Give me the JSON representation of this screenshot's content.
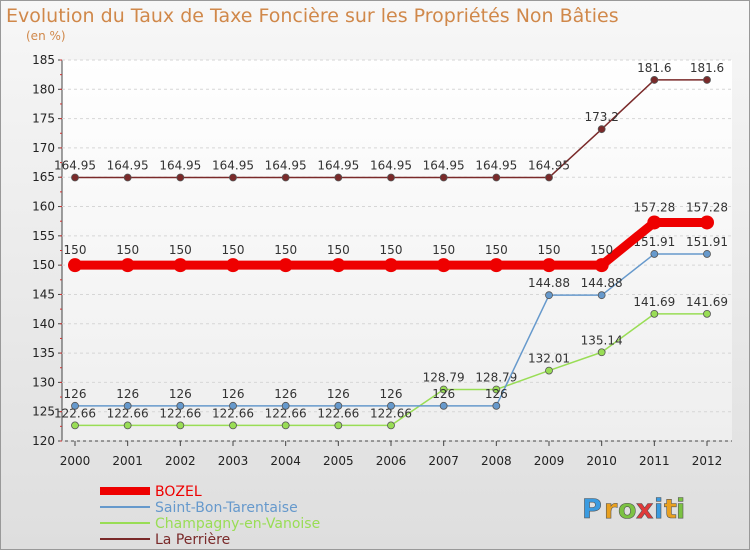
{
  "chart_data": {
    "type": "line",
    "title": "Evolution du Taux de Taxe Foncière sur les Propriétés Non Bâties",
    "ylabel": "(en %)",
    "xlabel": "",
    "ylim": [
      120,
      185
    ],
    "yticks": [
      120,
      125,
      130,
      135,
      140,
      145,
      150,
      155,
      160,
      165,
      170,
      175,
      180,
      185
    ],
    "categories": [
      "2000",
      "2001",
      "2002",
      "2003",
      "2004",
      "2005",
      "2006",
      "2007",
      "2008",
      "2009",
      "2010",
      "2011",
      "2012"
    ],
    "legend_position": "bottom-left",
    "series": [
      {
        "name": "La Perrière",
        "color": "#7a2a2a",
        "values": [
          164.95,
          164.95,
          164.95,
          164.95,
          164.95,
          164.95,
          164.95,
          164.95,
          164.95,
          164.95,
          173.2,
          181.6,
          181.6
        ],
        "labels": [
          "164.95",
          "164.95",
          "164.95",
          "164.95",
          "164.95",
          "164.95",
          "164.95",
          "164.95",
          "164.95",
          "164.95",
          "173.2",
          "181.6",
          "181.6"
        ]
      },
      {
        "name": "Champagny-en-Vanoise",
        "color": "#99dd55",
        "values": [
          122.66,
          122.66,
          122.66,
          122.66,
          122.66,
          122.66,
          122.66,
          128.79,
          128.79,
          132.01,
          135.14,
          141.69,
          141.69
        ],
        "labels": [
          "122.66",
          "122.66",
          "122.66",
          "122.66",
          "122.66",
          "122.66",
          "122.66",
          "128.79",
          "128.79",
          "132.01",
          "135.14",
          "141.69",
          "141.69"
        ]
      },
      {
        "name": "Saint-Bon-Tarentaise",
        "color": "#6699cc",
        "values": [
          126,
          126,
          126,
          126,
          126,
          126,
          126,
          126,
          126,
          144.88,
          144.88,
          151.91,
          151.91
        ],
        "labels": [
          "126",
          "126",
          "126",
          "126",
          "126",
          "126",
          "126",
          "126",
          "126",
          "144.88",
          "144.88",
          "151.91",
          "151.91"
        ]
      },
      {
        "name": "BOZEL",
        "color": "#ee0000",
        "values": [
          150,
          150,
          150,
          150,
          150,
          150,
          150,
          150,
          150,
          150,
          150,
          157.28,
          157.28
        ],
        "labels": [
          "150",
          "150",
          "150",
          "150",
          "150",
          "150",
          "150",
          "150",
          "150",
          "150",
          "150",
          "157.28",
          "157.28"
        ]
      }
    ],
    "legend": [
      {
        "name": "BOZEL",
        "color": "#ee0000"
      },
      {
        "name": "Saint-Bon-Tarentaise",
        "color": "#6699cc"
      },
      {
        "name": "Champagny-en-Vanoise",
        "color": "#99dd55"
      },
      {
        "name": "La Perrière",
        "color": "#7a2a2a"
      }
    ]
  },
  "brand": {
    "letters": [
      "P",
      "r",
      "o",
      "x",
      "i",
      "t",
      "i"
    ],
    "colors": [
      "#3a9be0",
      "#e8a020",
      "#7cc243",
      "#e03a3a",
      "#3a9be0",
      "#e8a020",
      "#7cc243"
    ]
  }
}
